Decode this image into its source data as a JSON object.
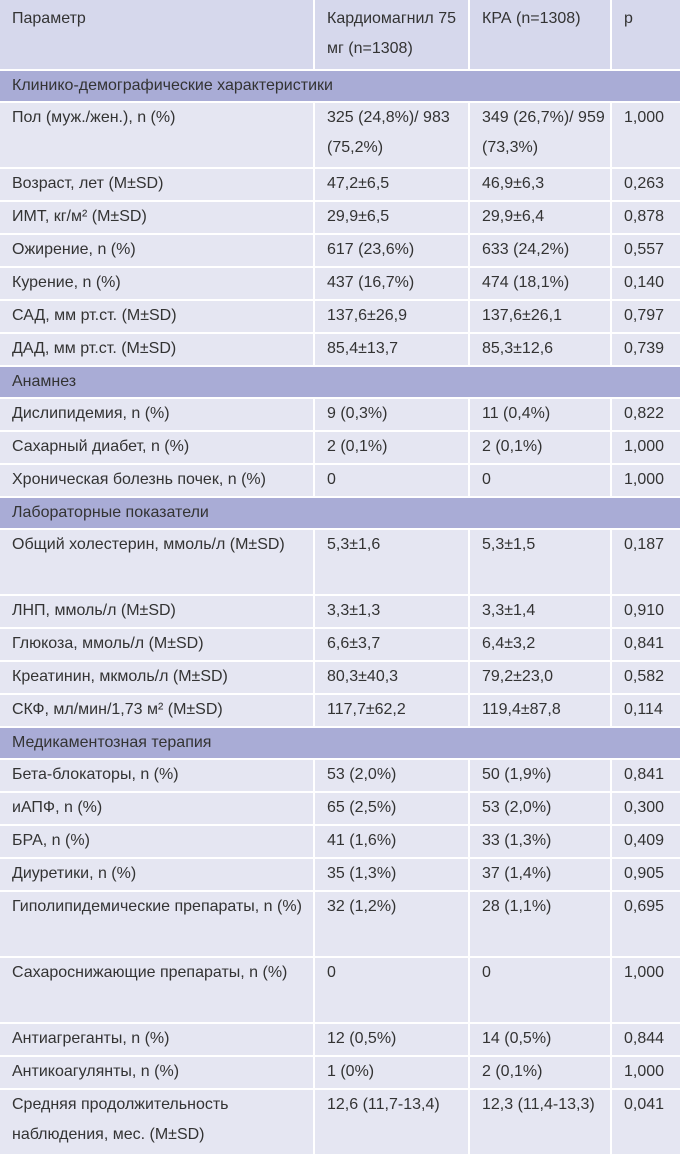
{
  "headers": [
    "Параметр",
    "Кардиомагнил 75 мг (n=1308)",
    "КРА (n=1308)",
    "p"
  ],
  "groups": [
    {
      "title": "Клинико-демографические характеристики",
      "rows": [
        [
          "Пол (муж./жен.), n (%)",
          "325 (24,8%)/ 983 (75,2%)",
          "349 (26,7%)/ 959 (73,3%)",
          "1,000"
        ],
        [
          "Возраст, лет (M±SD)",
          "47,2±6,5",
          "46,9±6,3",
          "0,263"
        ],
        [
          "ИМТ, кг/м² (M±SD)",
          "29,9±6,5",
          "29,9±6,4",
          "0,878"
        ],
        [
          "Ожирение, n (%)",
          "617 (23,6%)",
          "633 (24,2%)",
          "0,557"
        ],
        [
          "Курение, n (%)",
          "437 (16,7%)",
          "474 (18,1%)",
          "0,140"
        ],
        [
          "САД, мм рт.ст. (M±SD)",
          "137,6±26,9",
          "137,6±26,1",
          "0,797"
        ],
        [
          "ДАД, мм рт.ст. (M±SD)",
          "85,4±13,7",
          "85,3±12,6",
          "0,739"
        ]
      ]
    },
    {
      "title": "Анамнез",
      "rows": [
        [
          "Дислипидемия, n (%)",
          "9 (0,3%)",
          "11 (0,4%)",
          "0,822"
        ],
        [
          "Сахарный диабет, n (%)",
          "2 (0,1%)",
          "2 (0,1%)",
          "1,000"
        ],
        [
          "Хроническая болезнь почек, n (%)",
          "0",
          "0",
          "1,000"
        ]
      ]
    },
    {
      "title": "Лабораторные показатели",
      "rows": [
        [
          "Общий холестерин, ммоль/л (M±SD)",
          "5,3±1,6",
          "5,3±1,5",
          "0,187"
        ],
        [
          "ЛНП, ммоль/л (M±SD)",
          "3,3±1,3",
          "3,3±1,4",
          "0,910"
        ],
        [
          "Глюкоза, ммоль/л (M±SD)",
          "6,6±3,7",
          "6,4±3,2",
          "0,841"
        ],
        [
          "Креатинин, мкмоль/л (M±SD)",
          "80,3±40,3",
          "79,2±23,0",
          "0,582"
        ],
        [
          "СКФ, мл/мин/1,73 м² (M±SD)",
          "117,7±62,2",
          "119,4±87,8",
          "0,114"
        ]
      ]
    },
    {
      "title": "Медикаментозная терапия",
      "rows": [
        [
          "Бета-блокаторы, n (%)",
          "53 (2,0%)",
          "50 (1,9%)",
          "0,841"
        ],
        [
          "иАПФ, n (%)",
          "65 (2,5%)",
          "53 (2,0%)",
          "0,300"
        ],
        [
          "БРА, n (%)",
          "41 (1,6%)",
          "33 (1,3%)",
          "0,409"
        ],
        [
          "Диуретики, n (%)",
          "35 (1,3%)",
          "37 (1,4%)",
          "0,905"
        ],
        [
          "Гиполипидемические препараты, n (%)",
          "32 (1,2%)",
          "28 (1,1%)",
          "0,695"
        ],
        [
          "Сахароснижающие препараты, n (%)",
          "0",
          "0",
          "1,000"
        ],
        [
          "Антиагреганты, n (%)",
          "12 (0,5%)",
          "14 (0,5%)",
          "0,844"
        ],
        [
          "Антикоагулянты, n (%)",
          "1 (0%)",
          "2 (0,1%)",
          "1,000"
        ],
        [
          "Средняя продолжительность наблюдения, мес. (M±SD)",
          "12,6 (11,7-13,4)",
          "12,3 (11,4-13,3)",
          "0,041"
        ]
      ]
    }
  ]
}
